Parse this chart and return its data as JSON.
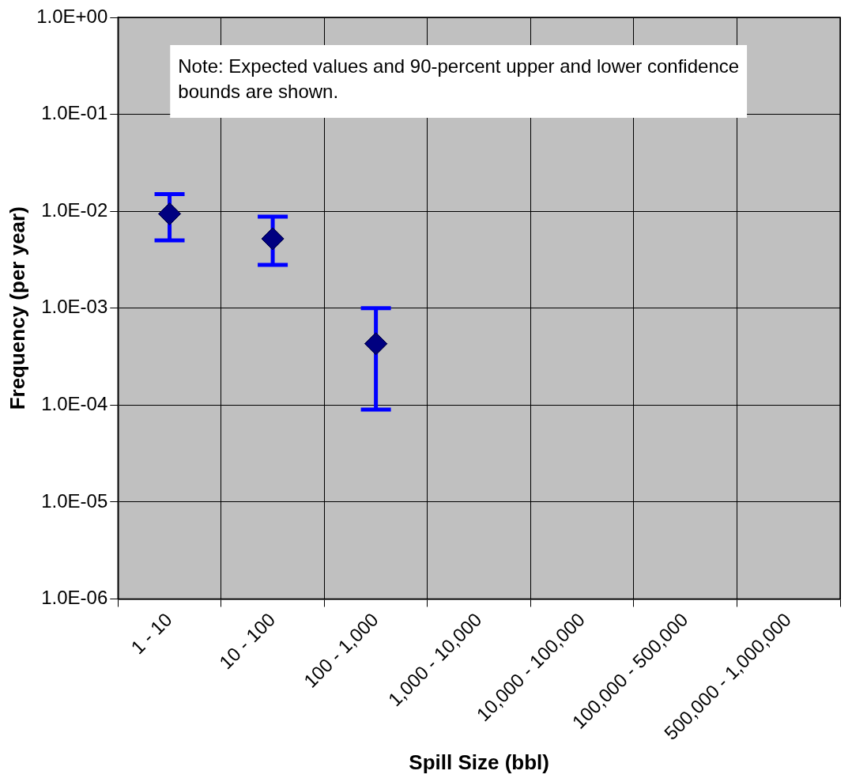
{
  "chart_data": {
    "type": "scatter",
    "xlabel": "Spill Size (bbl)",
    "ylabel": "Frequency (per year)",
    "categories": [
      "1 - 10",
      "10 - 100",
      "100 - 1,000",
      "1,000 - 10,000",
      "10,000 - 100,000",
      "100,000 - 500,000",
      "500,000 - 1,000,000"
    ],
    "series": [
      {
        "color": "#000080",
        "values": [
          0.0094,
          0.0052,
          0.00043,
          null,
          null,
          null,
          null
        ],
        "errors": [
          [
            0.005,
            0.015
          ],
          [
            0.0028,
            0.0088
          ],
          [
            9e-05,
            0.001
          ],
          null,
          null,
          null,
          null
        ]
      }
    ],
    "log": "y",
    "ylim": [
      1e-06,
      1
    ],
    "yticks": [
      {
        "value": 1e-06,
        "label": "1.0E-06"
      },
      {
        "value": 1e-05,
        "label": "1.0E-05"
      },
      {
        "value": 0.0001,
        "label": "1.0E-04"
      },
      {
        "value": 0.001,
        "label": "1.0E-03"
      },
      {
        "value": 0.01,
        "label": "1.0E-02"
      },
      {
        "value": 0.1,
        "label": "1.0E-01"
      },
      {
        "value": 1,
        "label": "1.0E+00"
      }
    ],
    "grid": true,
    "legend": false,
    "marker": "diamond",
    "annotations": [
      "Note: Expected values and 90-percent upper and lower confidence bounds are shown."
    ]
  }
}
